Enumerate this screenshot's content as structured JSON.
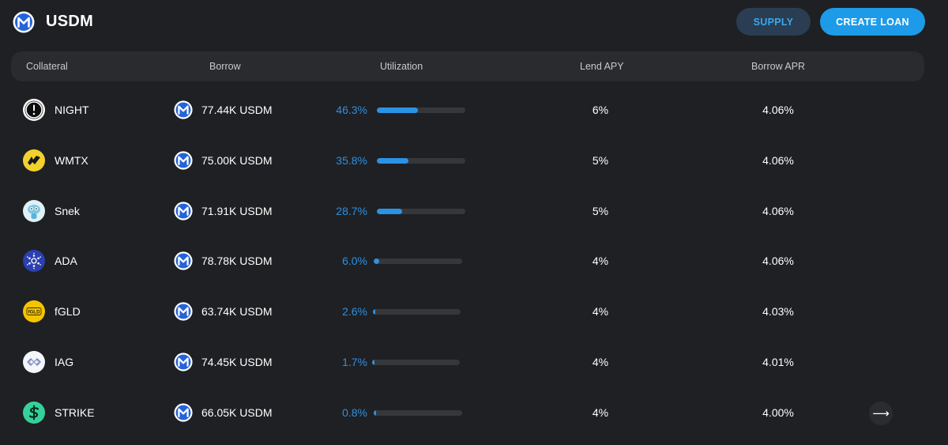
{
  "header": {
    "title": "USDM",
    "supply_label": "SUPPLY",
    "create_loan_label": "CREATE LOAN"
  },
  "columns": {
    "collateral": "Collateral",
    "borrow": "Borrow",
    "utilization": "Utilization",
    "lend_apy": "Lend APY",
    "borrow_apr": "Borrow APR"
  },
  "rows": [
    {
      "collateral": "NIGHT",
      "icon": "night-icon",
      "borrow": "77.44K USDM",
      "utilization": "46.3%",
      "utilization_value": 46.3,
      "lend_apy": "6%",
      "borrow_apr": "4.06%"
    },
    {
      "collateral": "WMTX",
      "icon": "wmtx-icon",
      "borrow": "75.00K USDM",
      "utilization": "35.8%",
      "utilization_value": 35.8,
      "lend_apy": "5%",
      "borrow_apr": "4.06%"
    },
    {
      "collateral": "Snek",
      "icon": "snek-icon",
      "borrow": "71.91K USDM",
      "utilization": "28.7%",
      "utilization_value": 28.7,
      "lend_apy": "5%",
      "borrow_apr": "4.06%"
    },
    {
      "collateral": "ADA",
      "icon": "ada-icon",
      "borrow": "78.78K USDM",
      "utilization": "6.0%",
      "utilization_value": 6.0,
      "lend_apy": "4%",
      "borrow_apr": "4.06%"
    },
    {
      "collateral": "fGLD",
      "icon": "fgld-icon",
      "icon_text": "fGLD",
      "borrow": "63.74K USDM",
      "utilization": "2.6%",
      "utilization_value": 2.6,
      "lend_apy": "4%",
      "borrow_apr": "4.03%"
    },
    {
      "collateral": "IAG",
      "icon": "iag-icon",
      "borrow": "74.45K USDM",
      "utilization": "1.7%",
      "utilization_value": 1.7,
      "lend_apy": "4%",
      "borrow_apr": "4.01%"
    },
    {
      "collateral": "STRIKE",
      "icon": "strike-icon",
      "borrow": "66.05K USDM",
      "utilization": "0.8%",
      "utilization_value": 0.8,
      "lend_apy": "4%",
      "borrow_apr": "4.00%"
    }
  ],
  "pagination": {
    "next_glyph": "⟶"
  },
  "colors": {
    "accent": "#1d9be8",
    "utilization_text": "#2f8fdf",
    "bar_fill": "#2a93e6",
    "background": "#1f2023"
  }
}
